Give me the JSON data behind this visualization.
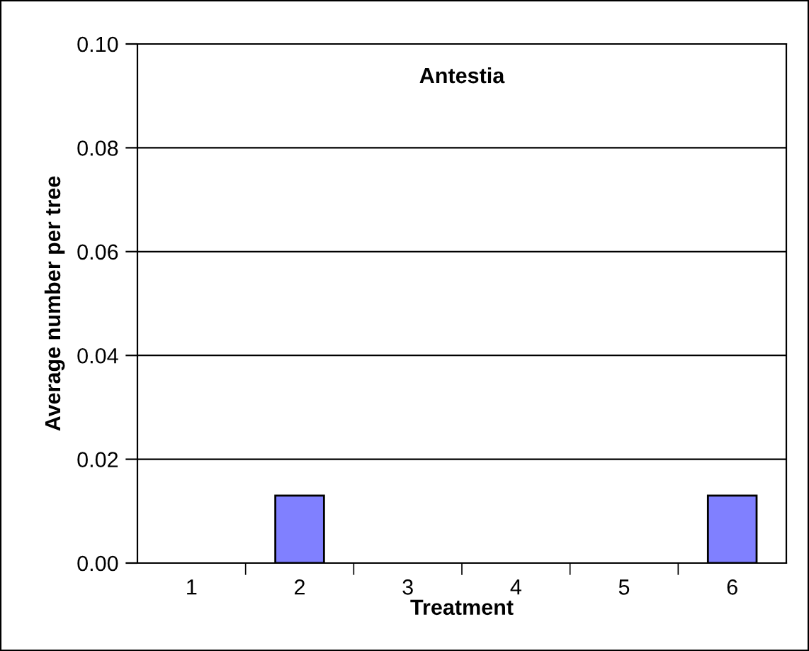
{
  "chart_data": {
    "type": "bar",
    "title": "Antestia",
    "xlabel": "Treatment",
    "ylabel": "Average number per tree",
    "categories": [
      "1",
      "2",
      "3",
      "4",
      "5",
      "6"
    ],
    "values": [
      0,
      0.013,
      0,
      0,
      0,
      0.013
    ],
    "color": "#8080ff",
    "ylim": [
      0,
      0.1
    ],
    "yticks": [
      {
        "value": 0,
        "label": "0.00"
      },
      {
        "value": 0.02,
        "label": "0.02"
      },
      {
        "value": 0.04,
        "label": "0.04"
      },
      {
        "value": 0.06,
        "label": "0.06"
      },
      {
        "value": 0.08,
        "label": "0.08"
      },
      {
        "value": 0.1,
        "label": "0.10"
      }
    ],
    "grid": "y",
    "legend": false
  }
}
